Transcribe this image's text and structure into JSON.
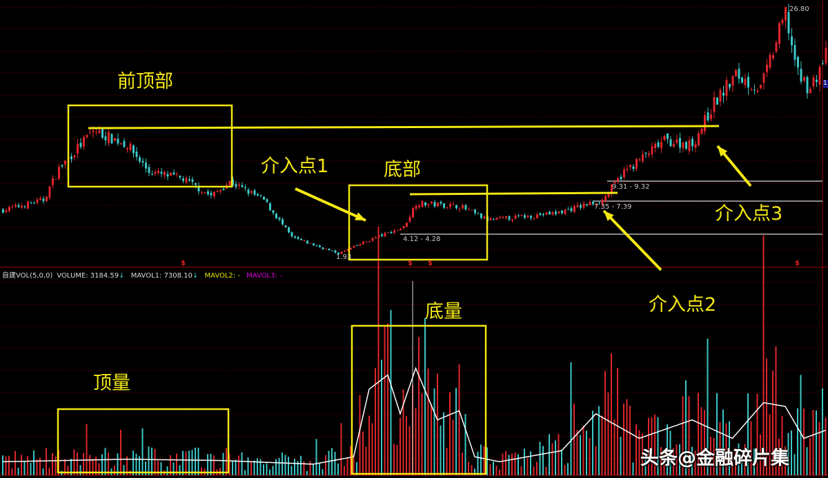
{
  "header": {
    "indicator": "自建VOL(5,0,0)",
    "volume": "VOLUME: 3184.59",
    "mavol1": "MAVOL1: 7308.10",
    "mavol2": "MAVOL2: -",
    "mavol3": "MAVOL3: -",
    "arrow": "↓"
  },
  "annotations": {
    "prev_top": "前顶部",
    "bottom": "底部",
    "entry1": "介入点1",
    "entry2": "介入点2",
    "entry3": "介入点3",
    "bottom_volume": "底量",
    "top_volume": "顶量"
  },
  "price_labels": {
    "high": "26.80",
    "low": "1.93",
    "range1": "4.12 - 4.28",
    "range2": "7.35 - 7.39",
    "range3": "9.31 - 9.32"
  },
  "markers": {
    "dollar": "$"
  },
  "watermark": "头条@金融碎片集",
  "badge": "1",
  "colors": {
    "up": "#e0262b",
    "down": "#3cc8c8",
    "annotation": "#f4e814",
    "ma": "#ffffff",
    "grid": "#8a0000"
  },
  "chart_data": {
    "type": "candlestick+volume",
    "price_range": [
      1.93,
      26.8
    ],
    "price_keypoints": [
      {
        "bar": 0,
        "close": 6.5
      },
      {
        "bar": 13,
        "close": 7.5
      },
      {
        "bar": 18,
        "close": 10.6
      },
      {
        "bar": 29,
        "close": 14.4
      },
      {
        "bar": 40,
        "close": 13.0
      },
      {
        "bar": 47,
        "close": 10.3
      },
      {
        "bar": 58,
        "close": 9.6
      },
      {
        "bar": 67,
        "close": 7.9
      },
      {
        "bar": 73,
        "close": 9.3
      },
      {
        "bar": 84,
        "close": 7.5
      },
      {
        "bar": 93,
        "close": 3.8
      },
      {
        "bar": 108,
        "close": 2.2
      },
      {
        "bar": 120,
        "close": 3.8
      },
      {
        "bar": 129,
        "close": 4.8
      },
      {
        "bar": 133,
        "close": 7.2
      },
      {
        "bar": 147,
        "close": 6.9
      },
      {
        "bar": 156,
        "close": 5.5
      },
      {
        "bar": 178,
        "close": 6.2
      },
      {
        "bar": 193,
        "close": 7.5
      },
      {
        "bar": 200,
        "close": 10.3
      },
      {
        "bar": 213,
        "close": 13.4
      },
      {
        "bar": 222,
        "close": 13.0
      },
      {
        "bar": 229,
        "close": 17.1
      },
      {
        "bar": 236,
        "close": 19.9
      },
      {
        "bar": 244,
        "close": 18.5
      },
      {
        "bar": 252,
        "close": 26.0
      },
      {
        "bar": 256,
        "close": 19.9
      },
      {
        "bar": 260,
        "close": 18.5
      },
      {
        "bar": 265,
        "close": 21.9
      }
    ],
    "mavol_keypoints": [
      {
        "bar": 0,
        "value": 2200
      },
      {
        "bar": 40,
        "value": 2600
      },
      {
        "bar": 70,
        "value": 2400
      },
      {
        "bar": 100,
        "value": 1800
      },
      {
        "bar": 113,
        "value": 3000
      },
      {
        "bar": 118,
        "value": 14000
      },
      {
        "bar": 124,
        "value": 16300
      },
      {
        "bar": 128,
        "value": 10000
      },
      {
        "bar": 133,
        "value": 17400
      },
      {
        "bar": 140,
        "value": 9000
      },
      {
        "bar": 147,
        "value": 10500
      },
      {
        "bar": 152,
        "value": 3000
      },
      {
        "bar": 160,
        "value": 2200
      },
      {
        "bar": 180,
        "value": 4000
      },
      {
        "bar": 191,
        "value": 10000
      },
      {
        "bar": 205,
        "value": 6000
      },
      {
        "bar": 222,
        "value": 9000
      },
      {
        "bar": 235,
        "value": 6000
      },
      {
        "bar": 245,
        "value": 11800
      },
      {
        "bar": 252,
        "value": 11200
      },
      {
        "bar": 258,
        "value": 6000
      },
      {
        "bar": 265,
        "value": 7308.1
      }
    ]
  }
}
